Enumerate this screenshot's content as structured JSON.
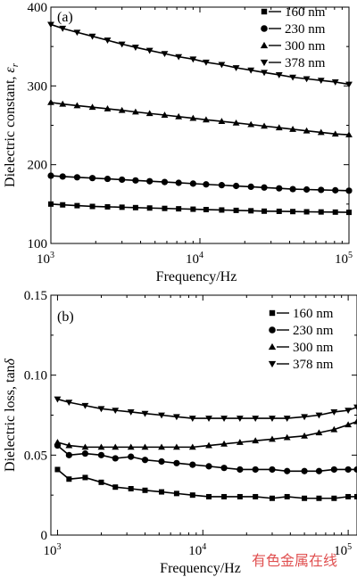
{
  "chart_data": [
    {
      "type": "line",
      "panel_label": "(a)",
      "xlabel": "Frequency/Hz",
      "ylabel": "Dielectric constant, ",
      "ylabel_symbol": "ε",
      "ylabel_subscript": "r",
      "x_scale": "log",
      "xlim": [
        1000,
        100000
      ],
      "ylim": [
        100,
        400
      ],
      "x_tick_values": [
        1000,
        10000,
        100000
      ],
      "x_ticks": [
        {
          "base": "10",
          "exp": "3"
        },
        {
          "base": "10",
          "exp": "4"
        },
        {
          "base": "10",
          "exp": "5"
        }
      ],
      "y_ticks": [
        "100",
        "200",
        "300",
        "400"
      ],
      "y_tick_values": [
        100,
        200,
        300,
        400
      ],
      "legend_position": "top-right",
      "series": [
        {
          "name": "160 nm",
          "marker": "square",
          "x": [
            1000,
            1200,
            1500,
            1900,
            2400,
            3000,
            3700,
            4600,
            5800,
            7200,
            9000,
            11000,
            14000,
            17500,
            22000,
            27000,
            34000,
            42000,
            52000,
            65000,
            81000,
            100000
          ],
          "values": [
            150,
            149,
            148,
            147,
            146.5,
            146,
            145.5,
            145,
            144.5,
            144,
            143.5,
            143,
            142.5,
            142,
            141.5,
            141,
            140.8,
            140.5,
            140.2,
            140,
            139.8,
            139.5
          ]
        },
        {
          "name": "230 nm",
          "marker": "circle",
          "x": [
            1000,
            1200,
            1500,
            1900,
            2400,
            3000,
            3700,
            4600,
            5800,
            7200,
            9000,
            11000,
            14000,
            17500,
            22000,
            27000,
            34000,
            42000,
            52000,
            65000,
            81000,
            100000
          ],
          "values": [
            186,
            185,
            184,
            183,
            182,
            181,
            180,
            179,
            178,
            177,
            176,
            175,
            174,
            173,
            172,
            171,
            170,
            169,
            168.5,
            168,
            167.5,
            167
          ]
        },
        {
          "name": "300 nm",
          "marker": "triangle-up",
          "x": [
            1000,
            1200,
            1500,
            1900,
            2400,
            3000,
            3700,
            4600,
            5800,
            7200,
            9000,
            11000,
            14000,
            17500,
            22000,
            27000,
            34000,
            42000,
            52000,
            65000,
            81000,
            100000
          ],
          "values": [
            279,
            277,
            275,
            273,
            271,
            269,
            267,
            265,
            263,
            261,
            259,
            257,
            255,
            253,
            251,
            249,
            247,
            245,
            243,
            241,
            239,
            238
          ]
        },
        {
          "name": "378 nm",
          "marker": "triangle-down",
          "x": [
            1000,
            1200,
            1500,
            1900,
            2400,
            3000,
            3700,
            4600,
            5800,
            7200,
            9000,
            11000,
            14000,
            17500,
            22000,
            27000,
            34000,
            42000,
            52000,
            65000,
            81000,
            100000
          ],
          "values": [
            378,
            373,
            368,
            363,
            358,
            353,
            349,
            345,
            341,
            337,
            334,
            330,
            327,
            323,
            320,
            317,
            314,
            311,
            309,
            307,
            305,
            302
          ]
        }
      ]
    },
    {
      "type": "line",
      "panel_label": "(b)",
      "xlabel": "Frequency/Hz",
      "ylabel": "Dielectric loss, tan",
      "ylabel_symbol": "δ",
      "x_scale": "log",
      "xlim": [
        900,
        115000
      ],
      "ylim": [
        0,
        0.15
      ],
      "x_tick_values": [
        1000,
        10000,
        100000
      ],
      "x_ticks": [
        {
          "base": "10",
          "exp": "3"
        },
        {
          "base": "10",
          "exp": "4"
        },
        {
          "base": "10",
          "exp": "5"
        }
      ],
      "y_ticks": [
        "0",
        "0.05",
        "0.10",
        "0.15"
      ],
      "y_tick_values": [
        0,
        0.05,
        0.1,
        0.15
      ],
      "legend_position": "top-right",
      "series": [
        {
          "name": "160 nm",
          "marker": "square",
          "x": [
            1000,
            1200,
            1550,
            2000,
            2500,
            3200,
            4000,
            5200,
            6600,
            8500,
            11000,
            14000,
            18000,
            23000,
            30000,
            38000,
            50000,
            63000,
            80000,
            100000,
            115000
          ],
          "values": [
            0.041,
            0.035,
            0.036,
            0.033,
            0.03,
            0.029,
            0.028,
            0.027,
            0.026,
            0.025,
            0.024,
            0.024,
            0.024,
            0.024,
            0.023,
            0.024,
            0.023,
            0.023,
            0.023,
            0.024,
            0.024
          ]
        },
        {
          "name": "230 nm",
          "marker": "circle",
          "x": [
            1000,
            1200,
            1550,
            2000,
            2500,
            3200,
            4000,
            5200,
            6600,
            8500,
            11000,
            14000,
            18000,
            23000,
            30000,
            38000,
            50000,
            63000,
            80000,
            100000,
            115000
          ],
          "values": [
            0.056,
            0.05,
            0.051,
            0.05,
            0.048,
            0.049,
            0.047,
            0.046,
            0.045,
            0.044,
            0.043,
            0.042,
            0.041,
            0.041,
            0.041,
            0.04,
            0.04,
            0.04,
            0.041,
            0.041,
            0.041
          ]
        },
        {
          "name": "300 nm",
          "marker": "triangle-up",
          "x": [
            1000,
            1200,
            1550,
            2000,
            2500,
            3200,
            4000,
            5200,
            6600,
            8500,
            11000,
            14000,
            18000,
            23000,
            30000,
            38000,
            50000,
            63000,
            80000,
            100000,
            115000
          ],
          "values": [
            0.058,
            0.056,
            0.055,
            0.055,
            0.055,
            0.055,
            0.055,
            0.055,
            0.055,
            0.055,
            0.056,
            0.057,
            0.058,
            0.059,
            0.06,
            0.061,
            0.062,
            0.064,
            0.066,
            0.069,
            0.071
          ]
        },
        {
          "name": "378 nm",
          "marker": "triangle-down",
          "x": [
            1000,
            1200,
            1550,
            2000,
            2500,
            3200,
            4000,
            5200,
            6600,
            8500,
            11000,
            14000,
            18000,
            23000,
            30000,
            38000,
            50000,
            63000,
            80000,
            100000,
            115000
          ],
          "values": [
            0.085,
            0.083,
            0.081,
            0.079,
            0.078,
            0.077,
            0.076,
            0.075,
            0.074,
            0.073,
            0.073,
            0.073,
            0.073,
            0.073,
            0.073,
            0.073,
            0.074,
            0.075,
            0.077,
            0.078,
            0.08
          ]
        }
      ]
    }
  ],
  "watermark": "有色金属在线"
}
